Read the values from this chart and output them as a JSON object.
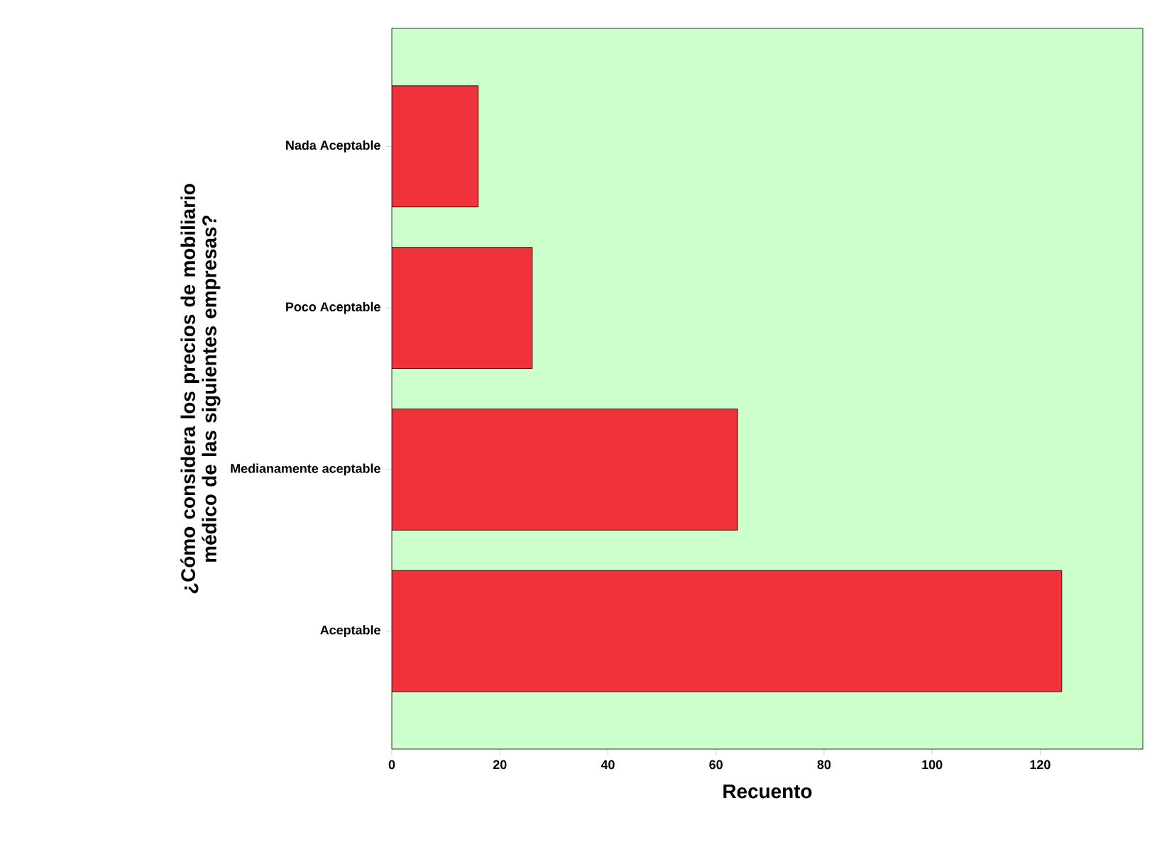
{
  "chart_data": {
    "type": "bar",
    "orientation": "horizontal",
    "ylabel": "¿Cómo considera los precios de mobiliario médico de las siguientes empresas?",
    "xlabel": "Recuento",
    "categories": [
      "Nada Aceptable",
      "Poco Aceptable",
      "Medianamente aceptable",
      "Aceptable"
    ],
    "values": [
      16,
      26,
      64,
      124
    ],
    "color": "#f0323a",
    "xlim": [
      0,
      139
    ],
    "xticks": [
      0,
      20,
      40,
      60,
      80,
      100,
      120
    ],
    "grid": false
  }
}
